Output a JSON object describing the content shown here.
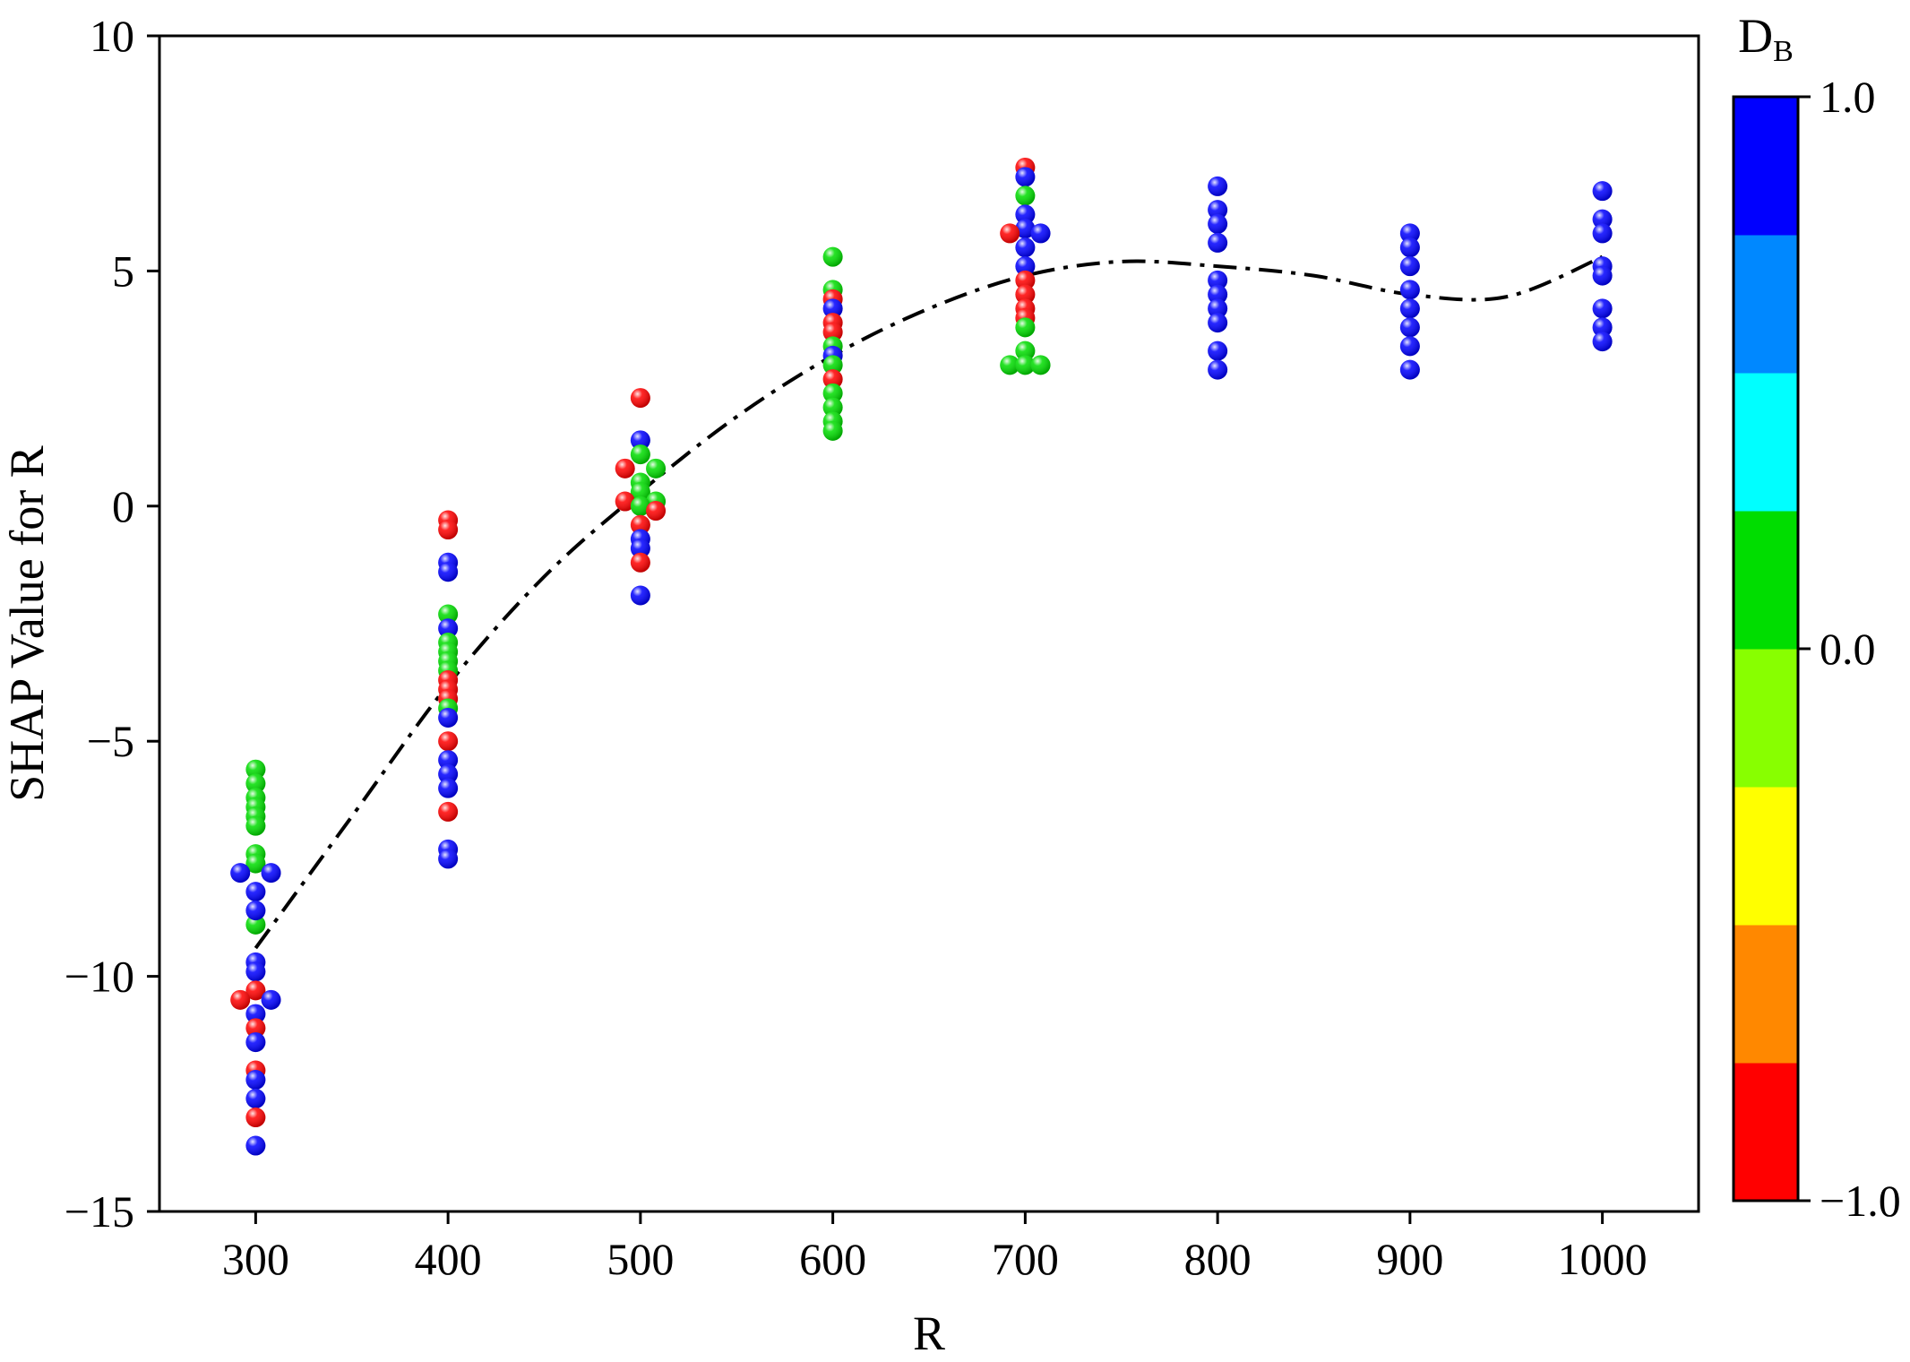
{
  "chart_data": {
    "type": "scatter",
    "title": "",
    "xlabel": "R",
    "ylabel": "SHAP Value for R",
    "xlim": [
      250,
      1050
    ],
    "ylim": [
      -15,
      10
    ],
    "x_ticks": [
      300,
      400,
      500,
      600,
      700,
      800,
      900,
      1000
    ],
    "y_ticks": [
      -15,
      -10,
      -5,
      0,
      5,
      10
    ],
    "x_tick_labels": [
      "300",
      "400",
      "500",
      "600",
      "700",
      "800",
      "900",
      "1000"
    ],
    "y_tick_labels": [
      "−15",
      "−10",
      "−5",
      "0",
      "5",
      "10"
    ],
    "grid": false,
    "colorbar": {
      "title_main": "D",
      "title_sub": "B",
      "range": [
        -1,
        1
      ],
      "tick_values": [
        1,
        0,
        -1
      ],
      "tick_labels": [
        "1.0",
        "0.0",
        "−1.0"
      ],
      "colors": [
        "#ff0000",
        "#ff8800",
        "#ffff00",
        "#88ff00",
        "#00dd00",
        "#00ffff",
        "#0088ff",
        "#0000ff"
      ]
    },
    "trend": {
      "style": "dash-dot",
      "color": "#000000",
      "points": [
        [
          300,
          -9.4
        ],
        [
          350,
          -6.6
        ],
        [
          400,
          -3.8
        ],
        [
          450,
          -1.5
        ],
        [
          500,
          0.3
        ],
        [
          550,
          1.9
        ],
        [
          600,
          3.2
        ],
        [
          650,
          4.2
        ],
        [
          700,
          4.9
        ],
        [
          750,
          5.2
        ],
        [
          800,
          5.1
        ],
        [
          850,
          4.9
        ],
        [
          900,
          4.5
        ],
        [
          950,
          4.45
        ],
        [
          1000,
          5.3
        ]
      ]
    },
    "points": [
      {
        "x": 300,
        "y": -5.6,
        "c": 0.1
      },
      {
        "x": 300,
        "y": -5.9,
        "c": 0.1
      },
      {
        "x": 300,
        "y": -6.2,
        "c": 0.1
      },
      {
        "x": 300,
        "y": -6.4,
        "c": 0.1
      },
      {
        "x": 300,
        "y": -6.6,
        "c": 0.1
      },
      {
        "x": 300,
        "y": -6.8,
        "c": 0.1
      },
      {
        "x": 300,
        "y": -7.4,
        "c": 0.1
      },
      {
        "x": 300,
        "y": -7.6,
        "c": 0.1
      },
      {
        "x": 300,
        "y": -8.9,
        "c": 0.1
      },
      {
        "x": 292,
        "y": -7.8,
        "c": 1.0
      },
      {
        "x": 308,
        "y": -7.8,
        "c": 1.0
      },
      {
        "x": 300,
        "y": -8.2,
        "c": 1.0
      },
      {
        "x": 300,
        "y": -8.6,
        "c": 1.0
      },
      {
        "x": 300,
        "y": -9.7,
        "c": 1.0
      },
      {
        "x": 300,
        "y": -9.9,
        "c": 1.0
      },
      {
        "x": 300,
        "y": -10.3,
        "c": -1.0
      },
      {
        "x": 292,
        "y": -10.5,
        "c": -1.0
      },
      {
        "x": 308,
        "y": -10.5,
        "c": 1.0
      },
      {
        "x": 300,
        "y": -10.8,
        "c": 1.0
      },
      {
        "x": 300,
        "y": -11.1,
        "c": -1.0
      },
      {
        "x": 300,
        "y": -11.4,
        "c": 1.0
      },
      {
        "x": 300,
        "y": -12.0,
        "c": -1.0
      },
      {
        "x": 300,
        "y": -12.2,
        "c": 1.0
      },
      {
        "x": 300,
        "y": -12.6,
        "c": 1.0
      },
      {
        "x": 300,
        "y": -13.0,
        "c": -1.0
      },
      {
        "x": 300,
        "y": -13.6,
        "c": 1.0
      },
      {
        "x": 400,
        "y": -0.3,
        "c": -1.0
      },
      {
        "x": 400,
        "y": -0.5,
        "c": -1.0
      },
      {
        "x": 400,
        "y": -1.2,
        "c": 1.0
      },
      {
        "x": 400,
        "y": -1.4,
        "c": 1.0
      },
      {
        "x": 400,
        "y": -2.3,
        "c": 0.1
      },
      {
        "x": 400,
        "y": -2.6,
        "c": 1.0
      },
      {
        "x": 400,
        "y": -2.9,
        "c": 0.1
      },
      {
        "x": 400,
        "y": -3.1,
        "c": 0.1
      },
      {
        "x": 400,
        "y": -3.3,
        "c": 0.1
      },
      {
        "x": 400,
        "y": -3.5,
        "c": 0.1
      },
      {
        "x": 400,
        "y": -3.7,
        "c": -1.0
      },
      {
        "x": 400,
        "y": -3.9,
        "c": -1.0
      },
      {
        "x": 400,
        "y": -4.1,
        "c": -1.0
      },
      {
        "x": 400,
        "y": -4.3,
        "c": 0.1
      },
      {
        "x": 400,
        "y": -4.5,
        "c": 1.0
      },
      {
        "x": 400,
        "y": -5.0,
        "c": -1.0
      },
      {
        "x": 400,
        "y": -5.4,
        "c": 1.0
      },
      {
        "x": 400,
        "y": -5.7,
        "c": 1.0
      },
      {
        "x": 400,
        "y": -6.0,
        "c": 1.0
      },
      {
        "x": 400,
        "y": -6.5,
        "c": -1.0
      },
      {
        "x": 400,
        "y": -7.3,
        "c": 1.0
      },
      {
        "x": 400,
        "y": -7.5,
        "c": 1.0
      },
      {
        "x": 500,
        "y": 2.3,
        "c": -1.0
      },
      {
        "x": 500,
        "y": 1.4,
        "c": 1.0
      },
      {
        "x": 500,
        "y": 1.1,
        "c": 0.1
      },
      {
        "x": 492,
        "y": 0.8,
        "c": -1.0
      },
      {
        "x": 508,
        "y": 0.8,
        "c": 0.1
      },
      {
        "x": 500,
        "y": 0.5,
        "c": 0.1
      },
      {
        "x": 500,
        "y": 0.3,
        "c": 0.1
      },
      {
        "x": 492,
        "y": 0.1,
        "c": -1.0
      },
      {
        "x": 508,
        "y": 0.1,
        "c": 0.1
      },
      {
        "x": 500,
        "y": 0.0,
        "c": 0.1
      },
      {
        "x": 508,
        "y": -0.1,
        "c": -1.0
      },
      {
        "x": 500,
        "y": -0.4,
        "c": -1.0
      },
      {
        "x": 500,
        "y": -0.7,
        "c": 1.0
      },
      {
        "x": 500,
        "y": -0.9,
        "c": 1.0
      },
      {
        "x": 500,
        "y": -1.2,
        "c": -1.0
      },
      {
        "x": 500,
        "y": -1.9,
        "c": 1.0
      },
      {
        "x": 600,
        "y": 5.3,
        "c": 0.1
      },
      {
        "x": 600,
        "y": 4.6,
        "c": 0.1
      },
      {
        "x": 600,
        "y": 4.4,
        "c": -1.0
      },
      {
        "x": 600,
        "y": 4.2,
        "c": 1.0
      },
      {
        "x": 600,
        "y": 3.9,
        "c": -1.0
      },
      {
        "x": 600,
        "y": 3.7,
        "c": -1.0
      },
      {
        "x": 600,
        "y": 3.4,
        "c": 0.1
      },
      {
        "x": 600,
        "y": 3.2,
        "c": 1.0
      },
      {
        "x": 600,
        "y": 3.0,
        "c": 0.1
      },
      {
        "x": 600,
        "y": 2.7,
        "c": -1.0
      },
      {
        "x": 600,
        "y": 2.4,
        "c": 0.1
      },
      {
        "x": 600,
        "y": 2.1,
        "c": 0.1
      },
      {
        "x": 600,
        "y": 1.8,
        "c": 0.1
      },
      {
        "x": 600,
        "y": 1.6,
        "c": 0.1
      },
      {
        "x": 700,
        "y": 7.2,
        "c": -1.0
      },
      {
        "x": 700,
        "y": 7.0,
        "c": 1.0
      },
      {
        "x": 700,
        "y": 6.6,
        "c": 0.1
      },
      {
        "x": 700,
        "y": 6.2,
        "c": 1.0
      },
      {
        "x": 700,
        "y": 5.9,
        "c": 1.0
      },
      {
        "x": 692,
        "y": 5.8,
        "c": -1.0
      },
      {
        "x": 708,
        "y": 5.8,
        "c": 1.0
      },
      {
        "x": 700,
        "y": 5.5,
        "c": 1.0
      },
      {
        "x": 700,
        "y": 5.1,
        "c": 1.0
      },
      {
        "x": 700,
        "y": 4.8,
        "c": -1.0
      },
      {
        "x": 700,
        "y": 4.5,
        "c": -1.0
      },
      {
        "x": 700,
        "y": 4.2,
        "c": -1.0
      },
      {
        "x": 700,
        "y": 4.0,
        "c": -1.0
      },
      {
        "x": 700,
        "y": 3.8,
        "c": 0.1
      },
      {
        "x": 700,
        "y": 3.3,
        "c": 0.1
      },
      {
        "x": 692,
        "y": 3.0,
        "c": 0.1
      },
      {
        "x": 700,
        "y": 3.0,
        "c": 0.1
      },
      {
        "x": 708,
        "y": 3.0,
        "c": 0.1
      },
      {
        "x": 800,
        "y": 6.8,
        "c": 1.0
      },
      {
        "x": 800,
        "y": 6.3,
        "c": 1.0
      },
      {
        "x": 800,
        "y": 6.0,
        "c": 1.0
      },
      {
        "x": 800,
        "y": 5.6,
        "c": 1.0
      },
      {
        "x": 800,
        "y": 4.8,
        "c": 1.0
      },
      {
        "x": 800,
        "y": 4.5,
        "c": 1.0
      },
      {
        "x": 800,
        "y": 4.2,
        "c": 1.0
      },
      {
        "x": 800,
        "y": 3.9,
        "c": 1.0
      },
      {
        "x": 800,
        "y": 3.3,
        "c": 1.0
      },
      {
        "x": 800,
        "y": 2.9,
        "c": 1.0
      },
      {
        "x": 900,
        "y": 5.8,
        "c": 1.0
      },
      {
        "x": 900,
        "y": 5.5,
        "c": 1.0
      },
      {
        "x": 900,
        "y": 5.1,
        "c": 1.0
      },
      {
        "x": 900,
        "y": 4.6,
        "c": 1.0
      },
      {
        "x": 900,
        "y": 4.2,
        "c": 1.0
      },
      {
        "x": 900,
        "y": 3.8,
        "c": 1.0
      },
      {
        "x": 900,
        "y": 3.4,
        "c": 1.0
      },
      {
        "x": 900,
        "y": 2.9,
        "c": 1.0
      },
      {
        "x": 1000,
        "y": 6.7,
        "c": 1.0
      },
      {
        "x": 1000,
        "y": 6.1,
        "c": 1.0
      },
      {
        "x": 1000,
        "y": 5.8,
        "c": 1.0
      },
      {
        "x": 1000,
        "y": 5.1,
        "c": 1.0
      },
      {
        "x": 1000,
        "y": 4.9,
        "c": 1.0
      },
      {
        "x": 1000,
        "y": 4.2,
        "c": 1.0
      },
      {
        "x": 1000,
        "y": 3.8,
        "c": 1.0
      },
      {
        "x": 1000,
        "y": 3.5,
        "c": 1.0
      }
    ]
  }
}
